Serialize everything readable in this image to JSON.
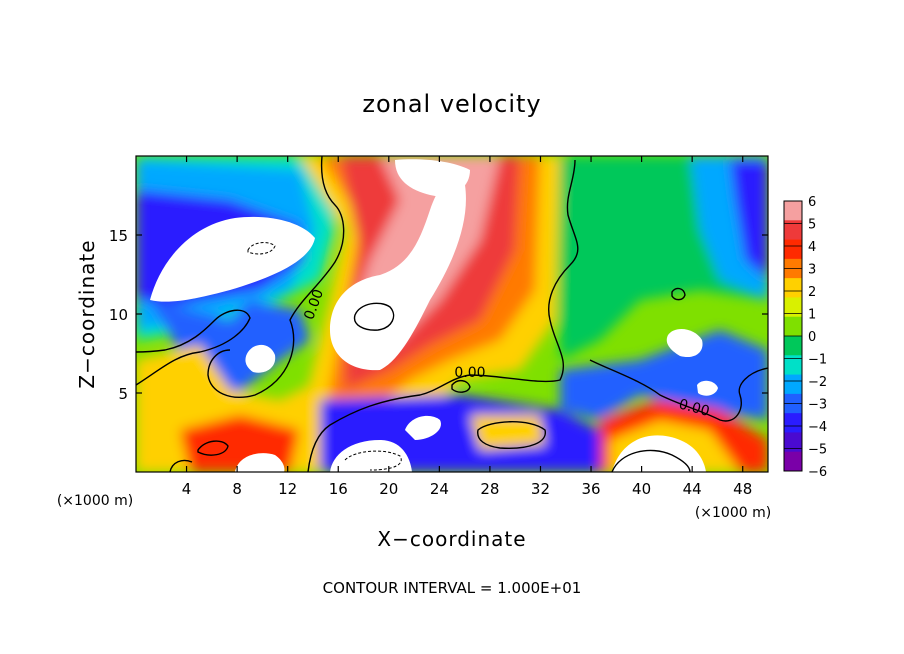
{
  "chart_data": {
    "type": "heatmap",
    "title": "zonal velocity",
    "xlabel": "X−coordinate",
    "ylabel": "Z−coordinate",
    "x_unit": "(×1000 m)",
    "y_unit": "(×1000 m)",
    "xlim": [
      0,
      50
    ],
    "ylim": [
      0,
      20
    ],
    "x_ticks": [
      4,
      8,
      12,
      16,
      20,
      24,
      28,
      32,
      36,
      40,
      44,
      48
    ],
    "y_ticks": [
      5,
      10,
      15
    ],
    "colorbar": {
      "levels": [
        6,
        5,
        4,
        3,
        2,
        1,
        0,
        -1,
        -2,
        -3,
        -4,
        -5,
        -6
      ],
      "labels": [
        "6",
        "5",
        "4",
        "3",
        "2",
        "1",
        "0",
        "−1",
        "−2",
        "−3",
        "−4",
        "−5",
        "−6"
      ],
      "colors": [
        "#f5a0a0",
        "#ee3a3a",
        "#ff2a00",
        "#ff7a00",
        "#ffd000",
        "#d9f000",
        "#7fe000",
        "#00c85a",
        "#00e0c8",
        "#00a8ff",
        "#2060ff",
        "#2a1cff",
        "#4a0ad0",
        "#7a00a8"
      ]
    },
    "contour_labels": [
      "0.00",
      "0.00",
      "0.00"
    ],
    "contour_interval_text": "CONTOUR INTERVAL = 1.000E+01",
    "grid": false
  }
}
